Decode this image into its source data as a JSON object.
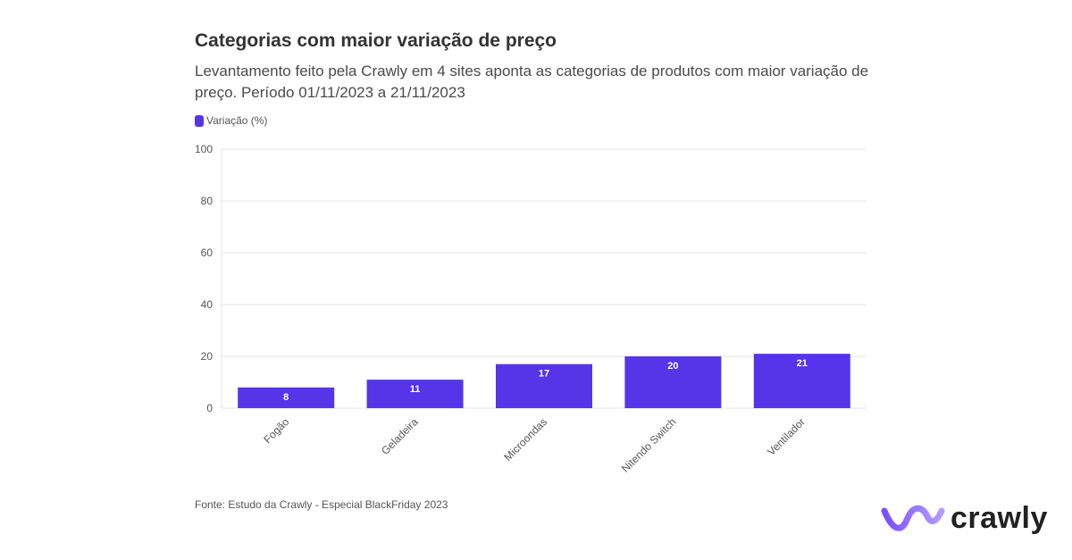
{
  "header": {
    "title": "Categorias com maior variação de preço",
    "subtitle": "Levantamento feito pela Crawly em 4 sites aponta as categorias de produtos com maior variação de preço. Período 01/11/2023 a 21/11/2023"
  },
  "legend": {
    "label": "Variação (%)"
  },
  "chart_data": {
    "type": "bar",
    "title": "Categorias com maior variação de preço",
    "categories": [
      "Fogão",
      "Geladeira",
      "Microondas",
      "Nitendo Switch",
      "Ventilador"
    ],
    "series": [
      {
        "name": "Variação (%)",
        "values": [
          8,
          11,
          17,
          20,
          21
        ]
      }
    ],
    "xlabel": "",
    "ylabel": "",
    "ylim": [
      0,
      100
    ],
    "yticks": [
      0,
      20,
      40,
      60,
      80,
      100
    ],
    "grid": true,
    "legend_position": "top-left",
    "data_labels": true,
    "x_tick_rotation_deg": -45
  },
  "colors": {
    "bar": "#5436e8",
    "grid": "#e6e6e6",
    "axis_text": "#555555",
    "label_text": "#ffffff",
    "brand_wave_start": "#7c4dff",
    "brand_wave_end": "#b39dff"
  },
  "footer": {
    "source": "Fonte: Estudo da Crawly - Especial BlackFriday 2023"
  },
  "brand": {
    "name": "crawly",
    "icon": "wave-logo-icon"
  }
}
